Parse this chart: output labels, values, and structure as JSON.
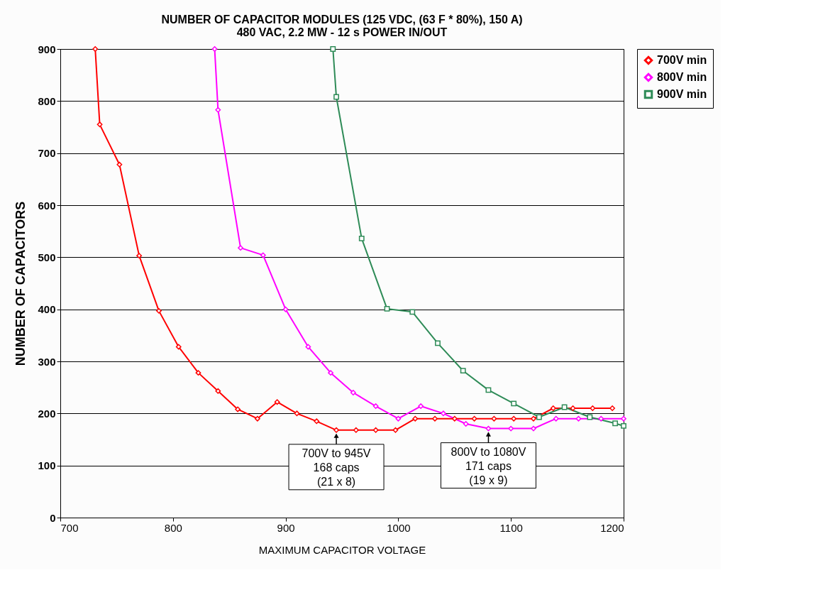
{
  "chart_data": {
    "type": "line",
    "title": [
      "NUMBER OF CAPACITOR MODULES (125 VDC, (63 F * 80%), 150 A)",
      "480 VAC, 2.2 MW - 12 s POWER IN/OUT"
    ],
    "xlabel": "MAXIMUM CAPACITOR VOLTAGE",
    "ylabel": "NUMBER OF CAPACITORS",
    "xlim": [
      700,
      1200
    ],
    "xticks": [
      700,
      800,
      900,
      1000,
      1100,
      1200
    ],
    "ylim": [
      0,
      900
    ],
    "yticks": [
      0,
      100,
      200,
      300,
      400,
      500,
      600,
      700,
      800,
      900
    ],
    "grid": "y",
    "legend": "right",
    "line_style": "solid",
    "series": [
      {
        "name": "700V min",
        "color": "#ff0000",
        "marker": "diamond",
        "x": [
          731,
          735,
          752.5,
          770,
          787.5,
          805,
          822.5,
          840,
          857.5,
          875,
          892.5,
          910,
          927.5,
          945,
          962.5,
          980,
          997.5,
          1015,
          1032.5,
          1050,
          1067.5,
          1085,
          1102.5,
          1120,
          1137.5,
          1155,
          1172.5,
          1190
        ],
        "values": [
          900,
          755,
          678,
          503,
          397,
          328,
          278,
          243,
          208,
          190,
          222,
          200,
          185,
          168,
          168,
          168,
          168,
          190,
          190,
          190,
          190,
          190,
          190,
          190,
          210,
          210,
          210,
          210
        ]
      },
      {
        "name": "800V min",
        "color": "#ff00ff",
        "marker": "diamond",
        "x": [
          837,
          840,
          860,
          880,
          900,
          920,
          940,
          960,
          980,
          1000,
          1020,
          1040,
          1060,
          1080,
          1100,
          1120,
          1140,
          1160,
          1180,
          1200
        ],
        "values": [
          900,
          783,
          518,
          504,
          400,
          328,
          278,
          240,
          214,
          190,
          214,
          200,
          180,
          171,
          171,
          171,
          190,
          190,
          190,
          190
        ]
      },
      {
        "name": "900V min",
        "color": "#2e8b57",
        "marker": "square",
        "x": [
          942,
          945,
          967.5,
          990,
          1012.5,
          1035,
          1057.5,
          1080,
          1102.5,
          1125,
          1147.5,
          1170,
          1192.5,
          1200
        ],
        "values": [
          900,
          808,
          536,
          401,
          395,
          335,
          282,
          245,
          219,
          193,
          212,
          193,
          181,
          176
        ]
      }
    ],
    "annotations": [
      {
        "text": "700V to 945V\n168 caps\n(21 x 8)",
        "x": 945,
        "y": 168
      },
      {
        "text": "800V to 1080V\n171 caps\n(19 x 9)",
        "x": 1080,
        "y": 171
      }
    ]
  }
}
